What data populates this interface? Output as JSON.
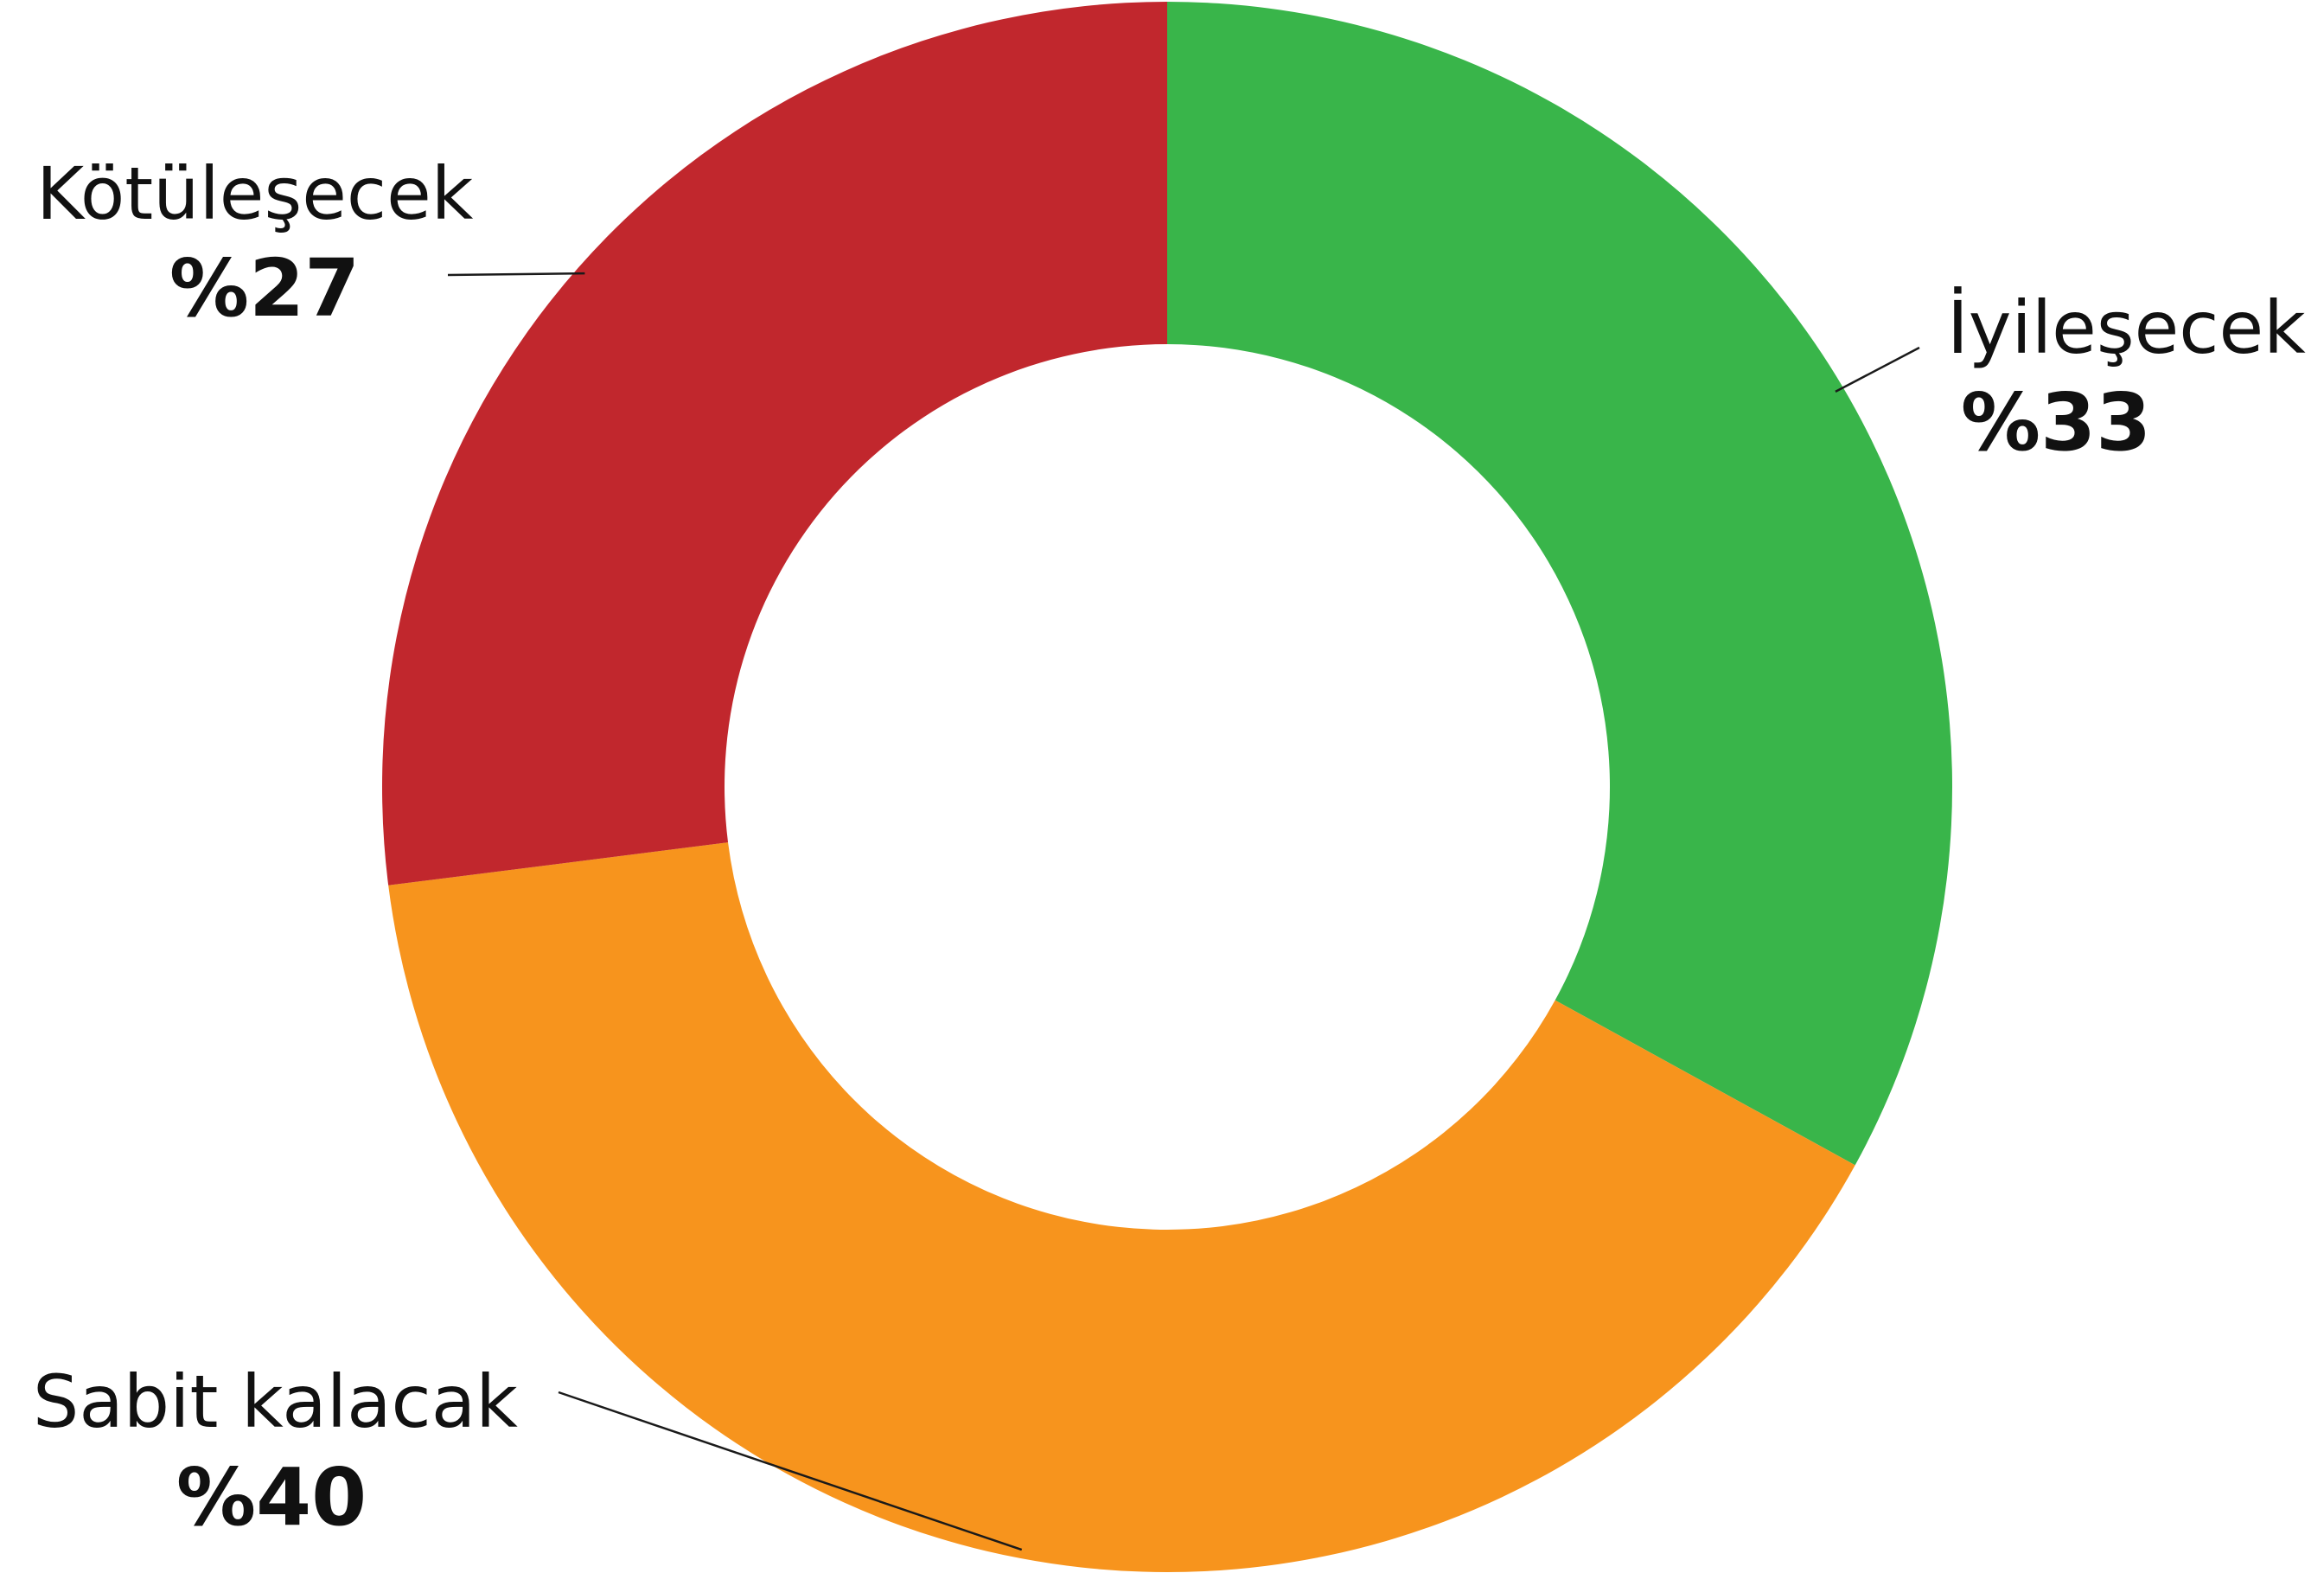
{
  "chart_data": {
    "type": "pie",
    "donut": true,
    "legend": "none",
    "slices": [
      {
        "label": "İyileşecek",
        "value": 33,
        "value_label": "%33",
        "color": "#39b54a"
      },
      {
        "label": "Sabit kalacak",
        "value": 40,
        "value_label": "%40",
        "color": "#f7941d"
      },
      {
        "label": "Kötüleşecek",
        "value": 27,
        "value_label": "%27",
        "color": "#c1272d"
      }
    ]
  }
}
